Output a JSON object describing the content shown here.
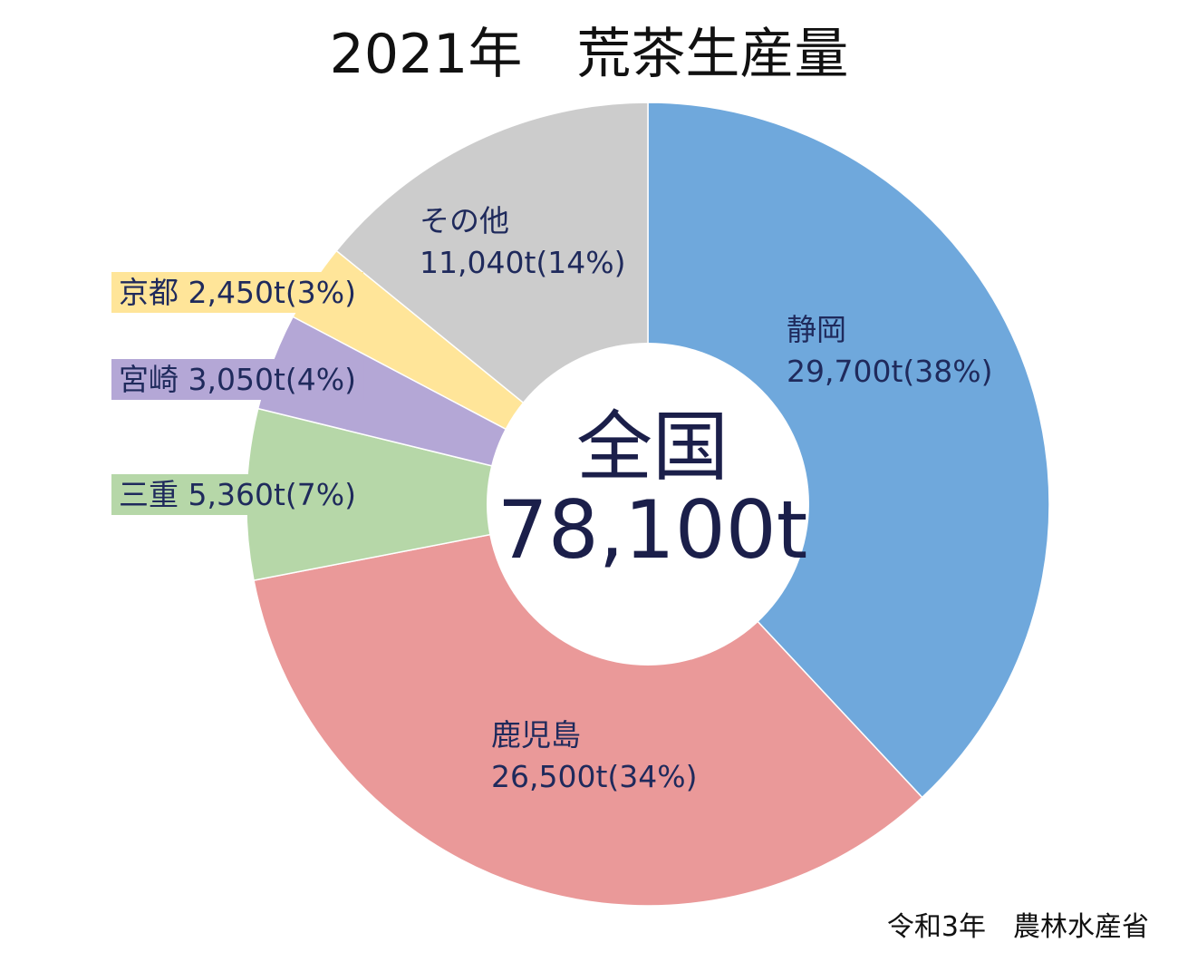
{
  "chart_data": {
    "type": "pie",
    "title": "2021年　荒茶生産量",
    "center_label": "全国",
    "center_value": "78,100t",
    "total": 78100,
    "unit": "t",
    "source": "令和3年　農林水産省",
    "slices": [
      {
        "name": "静岡",
        "value": 29700,
        "label": "29,700t(38%)",
        "color": "#6fa8dc"
      },
      {
        "name": "鹿児島",
        "value": 26500,
        "label": "26,500t(34%)",
        "color": "#ea9999"
      },
      {
        "name": "三重",
        "value": 5360,
        "label": "5,360t(7%)",
        "color": "#b6d7a8"
      },
      {
        "name": "宮崎",
        "value": 3050,
        "label": "3,050t(4%)",
        "color": "#b4a7d6"
      },
      {
        "name": "京都",
        "value": 2450,
        "label": "2,450t(3%)",
        "color": "#ffe599"
      },
      {
        "name": "その他",
        "value": 11040,
        "label": "11,040t(14%)",
        "color": "#cccccc"
      }
    ]
  }
}
